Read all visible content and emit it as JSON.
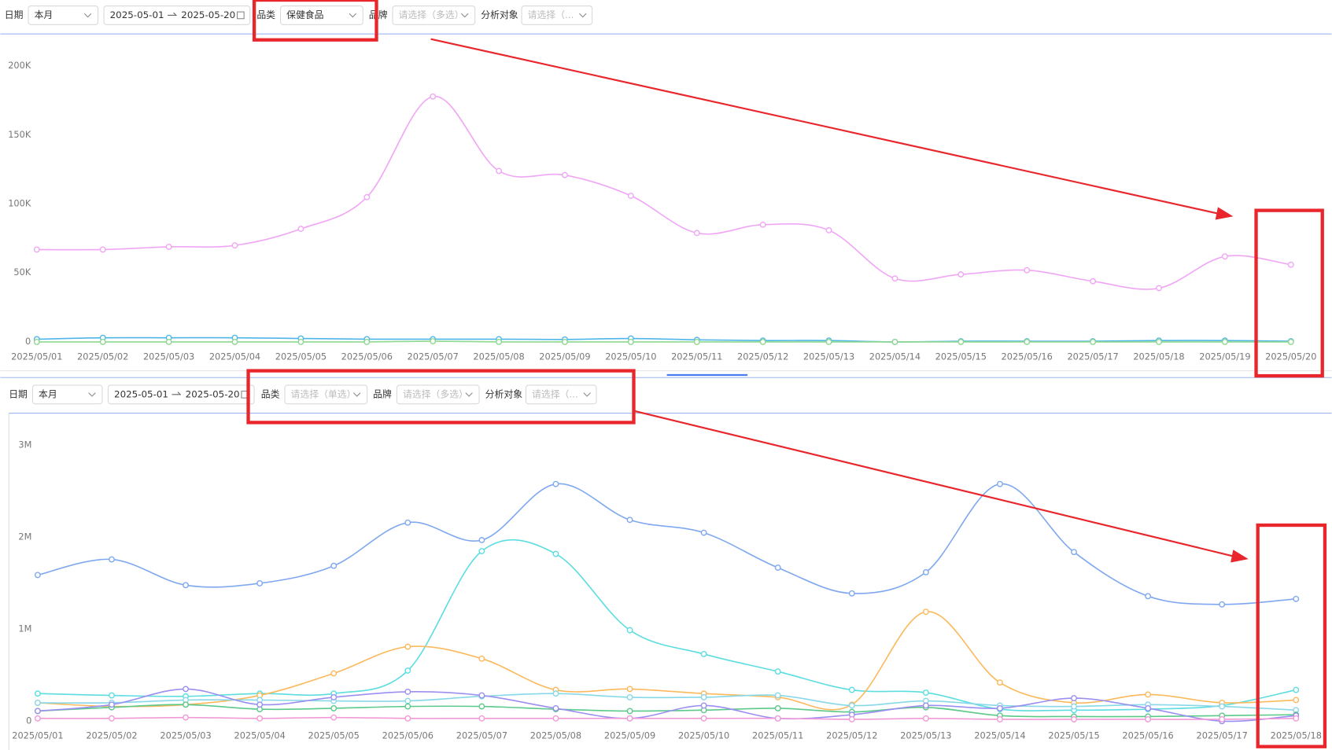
{
  "filter_bars": [
    {
      "date_label": "日期",
      "period": "本月",
      "start": "2025-05-01",
      "end": "2025-05-20",
      "category_label": "品类",
      "category": "保健食品",
      "brand_label": "品牌",
      "brand": "请选择（多选）",
      "target_label": "分析对象",
      "target": "请选择（..."
    },
    {
      "date_label": "日期",
      "period": "本月",
      "start": "2025-05-01",
      "end": "2025-05-20",
      "category_label": "品类",
      "category": "请选择（单选）",
      "brand_label": "品牌",
      "brand": "请选择（多选）",
      "target_label": "分析对象",
      "target": "请选择（..."
    }
  ],
  "chart_data": [
    {
      "type": "line",
      "smooth": true,
      "categories": [
        "2025/05/01",
        "2025/05/02",
        "2025/05/03",
        "2025/05/04",
        "2025/05/05",
        "2025/05/06",
        "2025/05/07",
        "2025/05/08",
        "2025/05/09",
        "2025/05/10",
        "2025/05/11",
        "2025/05/12",
        "2025/05/13",
        "2025/05/14",
        "2025/05/15",
        "2025/05/16",
        "2025/05/17",
        "2025/05/18",
        "2025/05/19",
        "2025/05/20"
      ],
      "ylim": [
        0,
        200000
      ],
      "yticks": [
        0,
        {
          "value": 50000,
          "label": "50K"
        },
        {
          "value": 100000,
          "label": "100K"
        },
        {
          "value": 150000,
          "label": "150K"
        },
        {
          "value": 200000,
          "label": "200K"
        }
      ],
      "series": [
        {
          "color": "#f0a6f5",
          "values": [
            67000,
            67000,
            69000,
            70000,
            82000,
            105000,
            178000,
            124000,
            121000,
            106000,
            79000,
            85000,
            81000,
            46000,
            49000,
            52000,
            44000,
            39000,
            62000,
            56000
          ]
        },
        {
          "color": "#4fb6e8",
          "values": [
            2000,
            3000,
            3000,
            3000,
            2500,
            2000,
            2000,
            2000,
            1800,
            2500,
            1500,
            1000,
            1000,
            0,
            500,
            500,
            500,
            1000,
            1000,
            500
          ]
        },
        {
          "color": "#8fd88f",
          "values": [
            0,
            0,
            0,
            0,
            0,
            0,
            500,
            0,
            0,
            0,
            0,
            0,
            0,
            0,
            0,
            0,
            0,
            0,
            0,
            0
          ]
        }
      ]
    },
    {
      "type": "line",
      "smooth": true,
      "categories": [
        "2025/05/01",
        "2025/05/02",
        "2025/05/03",
        "2025/05/04",
        "2025/05/05",
        "2025/05/06",
        "2025/05/07",
        "2025/05/08",
        "2025/05/09",
        "2025/05/10",
        "2025/05/11",
        "2025/05/12",
        "2025/05/13",
        "2025/05/14",
        "2025/05/15",
        "2025/05/16",
        "2025/05/17",
        "2025/05/18"
      ],
      "ylim": [
        0,
        3000000
      ],
      "yticks": [
        0,
        {
          "value": 1000000,
          "label": "1M"
        },
        {
          "value": 2000000,
          "label": "2M"
        },
        {
          "value": 3000000,
          "label": "3M"
        }
      ],
      "series": [
        {
          "color": "#7fa8ef",
          "values": [
            1590000,
            1760000,
            1480000,
            1500000,
            1690000,
            2160000,
            1970000,
            2580000,
            2190000,
            2050000,
            1670000,
            1390000,
            1620000,
            2580000,
            1840000,
            1360000,
            1270000,
            1330000
          ]
        },
        {
          "color": "#5cdde0",
          "values": [
            300000,
            280000,
            270000,
            300000,
            300000,
            550000,
            1850000,
            1820000,
            990000,
            730000,
            540000,
            340000,
            310000,
            130000,
            120000,
            130000,
            170000,
            340000
          ]
        },
        {
          "color": "#fbb95c",
          "values": [
            200000,
            160000,
            180000,
            280000,
            520000,
            810000,
            680000,
            340000,
            350000,
            300000,
            260000,
            180000,
            1190000,
            420000,
            200000,
            290000,
            200000,
            230000
          ]
        },
        {
          "color": "#87d8e8",
          "values": [
            200000,
            200000,
            230000,
            230000,
            220000,
            220000,
            270000,
            300000,
            260000,
            260000,
            280000,
            170000,
            220000,
            170000,
            160000,
            180000,
            160000,
            120000
          ]
        },
        {
          "color": "#5bc98a",
          "values": [
            110000,
            150000,
            180000,
            130000,
            140000,
            160000,
            160000,
            130000,
            110000,
            120000,
            140000,
            100000,
            150000,
            60000,
            50000,
            50000,
            60000,
            70000
          ]
        },
        {
          "color": "#9a8ff0",
          "values": [
            110000,
            180000,
            350000,
            180000,
            260000,
            320000,
            280000,
            140000,
            30000,
            170000,
            30000,
            70000,
            170000,
            140000,
            250000,
            140000,
            0,
            60000
          ]
        },
        {
          "color": "#f29ad8",
          "values": [
            30000,
            30000,
            40000,
            30000,
            40000,
            30000,
            30000,
            30000,
            30000,
            30000,
            30000,
            20000,
            30000,
            20000,
            20000,
            20000,
            20000,
            30000
          ]
        }
      ]
    }
  ]
}
